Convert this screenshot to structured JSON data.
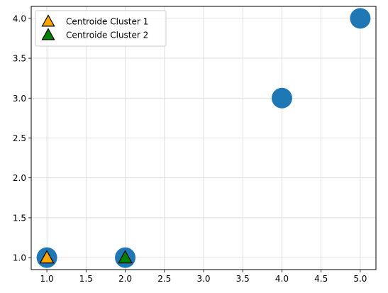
{
  "chart_data": {
    "type": "scatter",
    "title": "",
    "xlabel": "",
    "ylabel": "",
    "xlim": [
      0.8,
      5.2
    ],
    "ylim": [
      0.85,
      4.15
    ],
    "grid": true,
    "legend_position": "top-left",
    "x_ticks": [
      1.0,
      1.5,
      2.0,
      2.5,
      3.0,
      3.5,
      4.0,
      4.5,
      5.0
    ],
    "x_tick_labels": [
      "1.0",
      "1.5",
      "2.0",
      "2.5",
      "3.0",
      "3.5",
      "4.0",
      "4.5",
      "5.0"
    ],
    "y_ticks": [
      1.0,
      1.5,
      2.0,
      2.5,
      3.0,
      3.5,
      4.0
    ],
    "y_tick_labels": [
      "1.0",
      "1.5",
      "2.0",
      "2.5",
      "3.0",
      "3.5",
      "4.0"
    ],
    "series": [
      {
        "marker": "circle",
        "color": "#1f77b4",
        "points": [
          {
            "x": 1.0,
            "y": 1.0
          },
          {
            "x": 2.0,
            "y": 1.0
          },
          {
            "x": 4.0,
            "y": 3.0
          },
          {
            "x": 5.0,
            "y": 4.0
          }
        ]
      },
      {
        "name": "Centroide Cluster 1",
        "marker": "triangle",
        "color": "#ffa500",
        "points": [
          {
            "x": 1.0,
            "y": 1.0
          }
        ]
      },
      {
        "name": "Centroide Cluster 2",
        "marker": "triangle",
        "color": "#008000",
        "points": [
          {
            "x": 2.0,
            "y": 1.0
          }
        ]
      }
    ],
    "legend": [
      {
        "label": "Centroide Cluster 1",
        "marker": "triangle",
        "color": "#ffa500"
      },
      {
        "label": "Centroide Cluster 2",
        "marker": "triangle",
        "color": "#008000"
      }
    ]
  }
}
